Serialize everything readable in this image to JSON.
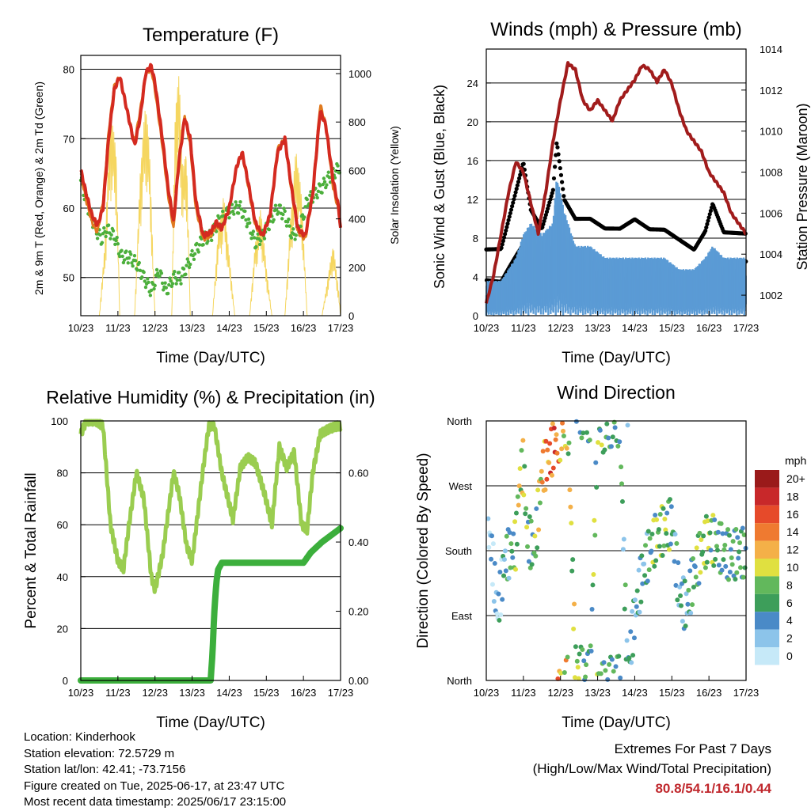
{
  "x_tick_labels": [
    "10/23",
    "11/23",
    "12/23",
    "13/23",
    "14/23",
    "15/23",
    "16/23",
    "17/23"
  ],
  "x_axis_label": "Time (Day/UTC)",
  "colors": {
    "temp_2m": "#e07a1f",
    "temp_9m": "#d42a20",
    "dewpoint": "#4caf3c",
    "solar": "#f5d660",
    "wind": "#5b9bd5",
    "gust": "#000000",
    "pressure": "#a11c1c",
    "rh": "#9acd50",
    "precip": "#3caf3c",
    "extremes": "#c0282d"
  },
  "panel_temperature": {
    "title": "Temperature (F)",
    "ylabel_left": "2m & 9m T (Red, Orange) & 2m Td (Green)",
    "ylabel_right": "Solar Insolation (Yellow)",
    "left_ticks": [
      "50",
      "60",
      "70",
      "80"
    ],
    "right_ticks": [
      "0",
      "200",
      "400",
      "600",
      "800",
      "1000"
    ]
  },
  "panel_wind": {
    "title": "Winds (mph) & Pressure (mb)",
    "ylabel_left": "Sonic Wind & Gust (Blue, Black)",
    "ylabel_right": "Station Pressure (Maroon)",
    "left_ticks": [
      "0",
      "4",
      "8",
      "12",
      "16",
      "20",
      "24"
    ],
    "right_ticks": [
      "1002",
      "1004",
      "1006",
      "1008",
      "1010",
      "1012",
      "1014"
    ]
  },
  "panel_rh": {
    "title": "Relative Humidity (%) & Precipitation (in)",
    "ylabel_left": "Percent & Total Rainfall",
    "left_ticks": [
      "0",
      "20",
      "40",
      "60",
      "80",
      "100"
    ],
    "right_ticks": [
      "0.00",
      "0.20",
      "0.40",
      "0.60"
    ]
  },
  "panel_dir": {
    "title": "Wind Direction",
    "ylabel_left": "Direction (Colored By Speed)",
    "dir_ticks": [
      "North",
      "East",
      "South",
      "West",
      "North"
    ],
    "legend_title": "mph",
    "legend_labels": [
      "0",
      "2",
      "4",
      "6",
      "8",
      "10",
      "12",
      "14",
      "16",
      "18",
      "20+"
    ],
    "legend_colors": [
      "#c6e9f8",
      "#8cc4ea",
      "#4a8ac7",
      "#3d9e5a",
      "#62b85c",
      "#e0e040",
      "#f4b048",
      "#ef7a30",
      "#e64a2a",
      "#c8282a",
      "#9a1a1a"
    ]
  },
  "info": {
    "location": "Location: Kinderhook",
    "elevation": "Station elevation: 72.5729 m",
    "latlon": "Station lat/lon: 42.41; -73.7156",
    "created": "Figure created on Tue, 2025-06-17, at 23:47 UTC",
    "recent": "Most recent data timestamp: 2025/06/17 23:15:00"
  },
  "extremes": {
    "line1": "Extremes For Past 7 Days",
    "line2": "(High/Low/Max Wind/Total Precipitation)",
    "values": "80.8/54.1/16.1/0.44"
  },
  "chart_data": [
    {
      "type": "line",
      "title": "Temperature (F)",
      "x_unit": "days since 10/23",
      "xlim": [
        0,
        7
      ],
      "ylim_left": [
        44.5,
        82
      ],
      "ylim_right": [
        0,
        1000
      ],
      "series": [
        {
          "name": "9m T",
          "axis": "left",
          "x": [
            0,
            0.15,
            0.3,
            0.45,
            0.6,
            0.75,
            0.9,
            1.05,
            1.25,
            1.45,
            1.6,
            1.75,
            1.9,
            2.0,
            2.2,
            2.35,
            2.5,
            2.65,
            2.8,
            2.95,
            3.1,
            3.3,
            3.5,
            3.65,
            3.8,
            4.0,
            4.2,
            4.35,
            4.5,
            4.7,
            4.9,
            5.1,
            5.3,
            5.5,
            5.65,
            5.85,
            6.05,
            6.25,
            6.45,
            6.6,
            6.8,
            6.95,
            7.0
          ],
          "values": [
            65.5,
            62,
            59,
            57.5,
            60,
            70,
            77,
            79,
            74,
            69,
            73,
            79.5,
            80.5,
            78,
            70,
            63,
            58,
            67,
            73,
            70,
            61,
            56,
            56.5,
            58,
            57,
            60,
            66,
            68,
            64,
            58,
            56,
            59,
            68,
            70,
            64,
            57,
            56,
            62,
            74,
            72,
            64,
            60,
            57
          ]
        },
        {
          "name": "2m T",
          "axis": "left",
          "x": [
            0,
            0.15,
            0.3,
            0.45,
            0.6,
            0.75,
            0.9,
            1.05,
            1.25,
            1.45,
            1.6,
            1.75,
            1.9,
            2.0,
            2.2,
            2.35,
            2.5,
            2.65,
            2.8,
            2.95,
            3.1,
            3.3,
            3.5,
            3.65,
            3.8,
            4.0,
            4.2,
            4.35,
            4.5,
            4.7,
            4.9,
            5.1,
            5.3,
            5.5,
            5.65,
            5.85,
            6.05,
            6.25,
            6.45,
            6.6,
            6.8,
            6.95,
            7.0
          ],
          "values": [
            65,
            61,
            58,
            56.5,
            61,
            71,
            77.5,
            79,
            74,
            69.5,
            74,
            79.5,
            80,
            77,
            69,
            62,
            57,
            67,
            73.5,
            69,
            60,
            55.5,
            56,
            57.5,
            57,
            60,
            66,
            68,
            63.5,
            57.5,
            56,
            59,
            68.5,
            70,
            63.5,
            56.5,
            55.5,
            62,
            75,
            72,
            63,
            59.5,
            57
          ]
        },
        {
          "name": "2m Td",
          "axis": "left",
          "x": [
            0,
            0.2,
            0.4,
            0.55,
            0.7,
            0.9,
            1.1,
            1.3,
            1.5,
            1.7,
            1.9,
            2.1,
            2.3,
            2.5,
            2.7,
            2.9,
            3.1,
            3.3,
            3.5,
            3.7,
            3.9,
            4.1,
            4.3,
            4.5,
            4.7,
            4.9,
            5.1,
            5.3,
            5.5,
            5.7,
            5.9,
            6.1,
            6.3,
            6.5,
            6.7,
            6.9,
            7.0
          ],
          "values": [
            64,
            60,
            57,
            55.5,
            57,
            56,
            53,
            53,
            52,
            50,
            48,
            51,
            48,
            50,
            50,
            52,
            54,
            55.5,
            56,
            58,
            59,
            60,
            60,
            58,
            55,
            56,
            58,
            60,
            59,
            56,
            57,
            61,
            62,
            63,
            64.5,
            65.5,
            66
          ]
        },
        {
          "name": "Solar Insolation",
          "axis": "right",
          "x": [
            0,
            0.5,
            0.65,
            0.8,
            0.95,
            1.05,
            1.2,
            1.45,
            1.6,
            1.75,
            1.85,
            2.0,
            2.2,
            2.45,
            2.55,
            2.65,
            2.75,
            2.85,
            2.95,
            3.2,
            3.55,
            3.7,
            3.85,
            4.0,
            4.15,
            4.55,
            4.7,
            4.85,
            5.0,
            5.15,
            5.5,
            5.65,
            5.8,
            5.95,
            6.1,
            6.5,
            6.65,
            6.8,
            6.95,
            7.0
          ],
          "values": [
            0,
            0,
            300,
            850,
            700,
            0,
            0,
            0,
            600,
            900,
            700,
            0,
            0,
            0,
            900,
            1000,
            600,
            700,
            0,
            0,
            0,
            350,
            500,
            250,
            0,
            0,
            300,
            450,
            200,
            0,
            0,
            400,
            700,
            500,
            0,
            0,
            150,
            300,
            100,
            0
          ]
        }
      ]
    },
    {
      "type": "scatter",
      "title": "Winds (mph) & Pressure (mb)",
      "x_unit": "days since 10/23",
      "xlim": [
        0,
        7
      ],
      "ylim_left": [
        0,
        27.5
      ],
      "ylim_right": [
        1001,
        1014
      ],
      "series": [
        {
          "name": "Station Pressure",
          "axis": "right",
          "kind": "line",
          "x": [
            0,
            0.2,
            0.4,
            0.6,
            0.8,
            1.0,
            1.2,
            1.4,
            1.6,
            1.8,
            2.0,
            2.2,
            2.4,
            2.6,
            2.8,
            3.0,
            3.2,
            3.4,
            3.6,
            3.8,
            4.0,
            4.2,
            4.4,
            4.6,
            4.8,
            5.0,
            5.2,
            5.4,
            5.6,
            5.8,
            6.0,
            6.2,
            6.4,
            6.6,
            6.8,
            7.0
          ],
          "values": [
            1001.6,
            1003,
            1005,
            1007,
            1008.5,
            1008,
            1006.5,
            1005,
            1007,
            1009.5,
            1011.5,
            1013.3,
            1013,
            1011.5,
            1011,
            1011.5,
            1011,
            1010.5,
            1011.5,
            1012,
            1012.5,
            1013.2,
            1013,
            1012.4,
            1013,
            1012.3,
            1011,
            1010,
            1009.5,
            1009,
            1008,
            1007.5,
            1007,
            1006,
            1005.5,
            1005
          ]
        },
        {
          "name": "Sonic Wind",
          "axis": "left",
          "kind": "band",
          "x": [
            0,
            0.4,
            0.8,
            1.0,
            1.2,
            1.5,
            1.8,
            1.9,
            2.1,
            2.4,
            2.8,
            3.2,
            3.6,
            4.0,
            4.4,
            4.8,
            5.2,
            5.6,
            5.9,
            6.1,
            6.4,
            6.8,
            7.0
          ],
          "values": [
            3,
            3,
            5,
            7,
            8,
            7,
            8,
            12,
            9,
            6,
            6,
            5,
            5,
            5,
            5,
            5,
            4,
            4,
            5,
            6,
            5,
            5,
            5
          ]
        },
        {
          "name": "Gust",
          "axis": "left",
          "kind": "points",
          "x": [
            0,
            0.4,
            0.8,
            1.0,
            1.2,
            1.5,
            1.8,
            1.9,
            2.1,
            2.4,
            2.8,
            3.2,
            3.6,
            4.0,
            4.4,
            4.8,
            5.2,
            5.6,
            5.9,
            6.1,
            6.4,
            6.8,
            7.0
          ],
          "values": [
            7,
            7,
            13,
            16,
            11,
            9,
            13,
            18,
            12,
            10,
            10,
            9,
            9,
            10,
            9,
            9,
            8,
            7,
            9,
            12,
            9,
            9,
            9
          ]
        }
      ]
    },
    {
      "type": "line",
      "title": "Relative Humidity (%) & Precipitation (in)",
      "x_unit": "days since 10/23",
      "xlim": [
        0,
        7
      ],
      "ylim_left": [
        0,
        100
      ],
      "ylim_right": [
        0,
        0.75
      ],
      "series": [
        {
          "name": "Relative Humidity",
          "axis": "left",
          "x": [
            0,
            0.15,
            0.4,
            0.6,
            0.8,
            1.0,
            1.15,
            1.3,
            1.5,
            1.7,
            1.9,
            2.0,
            2.2,
            2.5,
            2.65,
            2.85,
            3.0,
            3.3,
            3.45,
            3.6,
            3.8,
            4.1,
            4.3,
            4.5,
            4.7,
            4.95,
            5.15,
            5.35,
            5.55,
            5.75,
            5.95,
            6.1,
            6.25,
            6.45,
            6.7,
            6.9,
            7.0
          ],
          "values": [
            95,
            100,
            100,
            98,
            60,
            46,
            43,
            60,
            80,
            70,
            40,
            35,
            48,
            80,
            72,
            52,
            46,
            82,
            98,
            98,
            80,
            62,
            82,
            86,
            84,
            72,
            60,
            90,
            82,
            88,
            60,
            58,
            80,
            95,
            97,
            98,
            98
          ]
        },
        {
          "name": "Total Precipitation",
          "axis": "right",
          "x": [
            0,
            3.5,
            3.55,
            3.6,
            3.65,
            3.7,
            3.8,
            6.0,
            6.2,
            6.5,
            7.0
          ],
          "values": [
            0,
            0,
            0.08,
            0.2,
            0.28,
            0.32,
            0.34,
            0.34,
            0.37,
            0.4,
            0.44
          ]
        }
      ]
    },
    {
      "type": "scatter",
      "title": "Wind Direction",
      "x_unit": "days since 10/23",
      "xlim": [
        0,
        7
      ],
      "ylim": [
        0,
        360
      ],
      "series": [
        {
          "name": "Direction (colored by speed)",
          "x": [
            0.1,
            0.2,
            0.3,
            0.5,
            0.7,
            0.8,
            0.9,
            1.0,
            1.1,
            1.3,
            1.5,
            1.7,
            1.85,
            2.0,
            2.2,
            2.4,
            2.6,
            2.8,
            3.0,
            3.2,
            3.4,
            3.6,
            3.8,
            4.0,
            4.2,
            4.4,
            4.6,
            4.8,
            5.0,
            5.2,
            5.4,
            5.6,
            5.8,
            6.0,
            6.2,
            6.4,
            6.6,
            6.8,
            6.95
          ],
          "values": [
            200,
            150,
            90,
            170,
            180,
            190,
            280,
            300,
            200,
            180,
            290,
            310,
            330,
            340,
            360,
            20,
            10,
            5,
            355,
            350,
            360,
            360,
            10,
            90,
            150,
            180,
            200,
            210,
            220,
            120,
            100,
            150,
            180,
            200,
            190,
            180,
            170,
            180,
            175
          ],
          "speeds": [
            2,
            2,
            2,
            4,
            6,
            8,
            10,
            9,
            6,
            6,
            12,
            14,
            16,
            12,
            10,
            8,
            6,
            6,
            8,
            6,
            6,
            6,
            4,
            4,
            4,
            6,
            8,
            8,
            6,
            4,
            4,
            6,
            8,
            8,
            6,
            6,
            6,
            6,
            6
          ]
        }
      ]
    }
  ]
}
